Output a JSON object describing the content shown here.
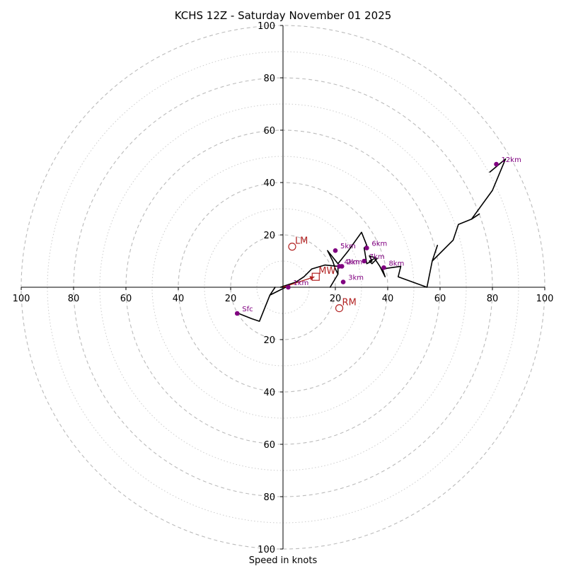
{
  "chart_data": {
    "type": "scatter",
    "subtype": "hodograph",
    "title": "KCHS 12Z - Saturday November 01 2025",
    "xlabel": "Speed in knots",
    "ylabel": "",
    "xlim": [
      -100,
      100
    ],
    "ylim": [
      -100,
      100
    ],
    "ring_radii_major": [
      20,
      40,
      60,
      80,
      100
    ],
    "ring_radii_minor": [
      10,
      30,
      50,
      70,
      90
    ],
    "x_tick_values": [
      -100,
      -80,
      -60,
      -40,
      -20,
      20,
      40,
      60,
      80,
      100
    ],
    "x_tick_labels": [
      "100",
      "80",
      "60",
      "40",
      "20",
      "20",
      "40",
      "60",
      "80",
      "100"
    ],
    "y_tick_values": [
      100,
      80,
      60,
      40,
      20,
      -20,
      -40,
      -60,
      -80,
      -100
    ],
    "y_tick_labels": [
      "100",
      "80",
      "60",
      "40",
      "20",
      "20",
      "40",
      "60",
      "80",
      "100"
    ],
    "colors": {
      "trace": "#000000",
      "height_marker": "#800080",
      "storm_marker": "#b22222",
      "grid_major": "#bbbbbb",
      "grid_minor": "#cccccc",
      "axis": "#000000"
    },
    "hodograph_trace": [
      [
        -17,
        -10
      ],
      [
        -12,
        -12
      ],
      [
        -9,
        -13
      ],
      [
        -5,
        -3
      ],
      [
        -3,
        0
      ],
      [
        -5,
        -3
      ],
      [
        -5,
        -3
      ],
      [
        1,
        0
      ],
      [
        -1,
        0
      ],
      [
        5,
        2
      ],
      [
        8,
        4
      ],
      [
        11,
        7
      ],
      [
        16,
        8.5
      ],
      [
        21,
        8
      ],
      [
        21,
        5
      ],
      [
        18,
        0
      ],
      [
        21,
        5
      ],
      [
        20,
        7
      ],
      [
        19,
        10
      ],
      [
        17,
        14
      ],
      [
        21,
        9
      ],
      [
        25,
        14
      ],
      [
        30,
        21
      ],
      [
        32,
        16
      ],
      [
        31,
        15
      ],
      [
        32,
        9
      ],
      [
        34,
        10
      ],
      [
        33,
        12
      ],
      [
        36,
        11
      ],
      [
        34,
        9
      ],
      [
        33,
        10
      ],
      [
        35,
        11
      ],
      [
        37,
        8
      ],
      [
        39,
        4
      ],
      [
        38,
        7
      ],
      [
        45,
        8
      ],
      [
        44,
        4
      ],
      [
        55,
        0
      ],
      [
        57,
        10
      ],
      [
        59,
        16
      ],
      [
        57,
        10
      ],
      [
        65,
        18
      ],
      [
        67,
        24
      ],
      [
        72,
        26
      ],
      [
        75,
        28
      ],
      [
        72,
        26
      ],
      [
        80,
        37
      ],
      [
        85,
        49
      ],
      [
        79,
        44
      ],
      [
        85,
        49
      ]
    ],
    "height_markers": [
      {
        "label": "Sfc",
        "x": -17.5,
        "y": -10
      },
      {
        "label": "1km",
        "x": 2,
        "y": 0
      },
      {
        "label": "2km",
        "x": 22.5,
        "y": 8
      },
      {
        "label": "3km",
        "x": 23,
        "y": 2
      },
      {
        "label": "4km",
        "x": 21.5,
        "y": 8
      },
      {
        "label": "5km",
        "x": 20,
        "y": 14
      },
      {
        "label": "6km",
        "x": 32,
        "y": 15
      },
      {
        "label": "7km",
        "x": 31,
        "y": 10
      },
      {
        "label": "8km",
        "x": 38.5,
        "y": 7.5
      },
      {
        "label": "12km",
        "x": 81.5,
        "y": 47
      }
    ],
    "storm_motion": [
      {
        "label": "LM",
        "marker": "circle",
        "x": 3.5,
        "y": 15.5
      },
      {
        "label": "MW",
        "marker": "square",
        "x": 12.5,
        "y": 4
      },
      {
        "label": "RM",
        "marker": "circle",
        "x": 21.5,
        "y": -8
      }
    ],
    "bunkers_vector": {
      "from": [
        0,
        0
      ],
      "to": [
        12,
        4
      ]
    }
  }
}
